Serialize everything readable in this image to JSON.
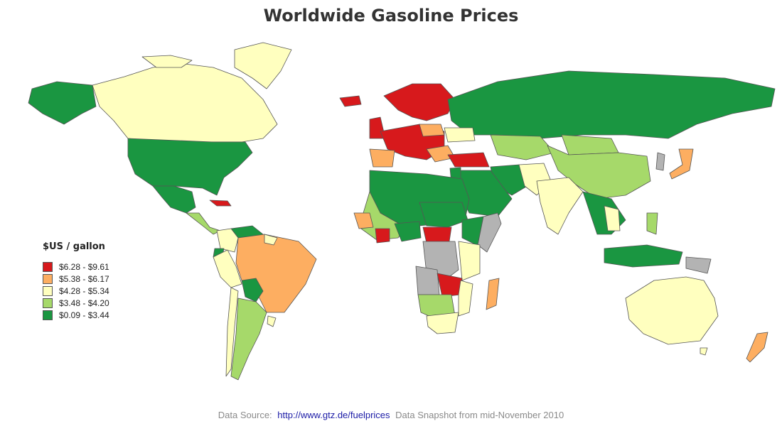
{
  "title": "Worldwide Gasoline Prices",
  "legend": {
    "title": "$US / gallon",
    "items": [
      {
        "label": "$6.28 - $9.61",
        "color": "#d7191c"
      },
      {
        "label": "$5.38 - $6.17",
        "color": "#fdae61"
      },
      {
        "label": "$4.28 - $5.34",
        "color": "#ffffbf"
      },
      {
        "label": "$3.48 - $4.20",
        "color": "#a6d96a"
      },
      {
        "label": "$0.09 - $3.44",
        "color": "#1a9641"
      }
    ]
  },
  "no_data_color": "#b3b3b3",
  "border_color": "#555555",
  "footer": {
    "source_label": "Data Source:",
    "source_link": "http://www.gtz.de/fuelprices",
    "snapshot": "Data Snapshot from mid-November 2010"
  }
}
